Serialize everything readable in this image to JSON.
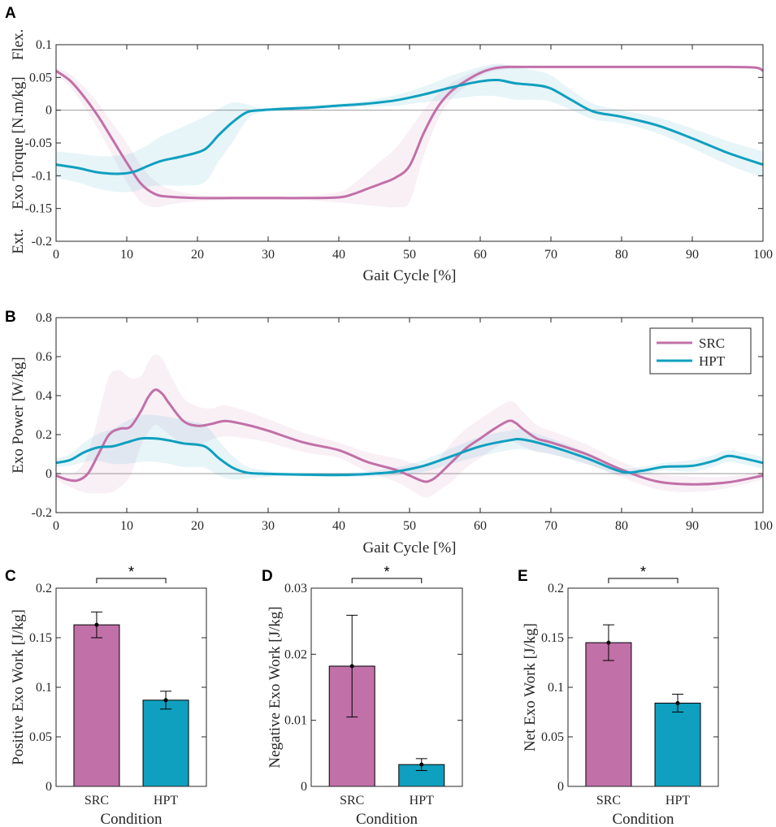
{
  "panels": {
    "A": "A",
    "B": "B",
    "C": "C",
    "D": "D",
    "E": "E"
  },
  "colors": {
    "SRC": "#c170a8",
    "HPT": "#0f9fbf",
    "zero_line": "#9b9b9b"
  },
  "chart_data": [
    {
      "id": "A",
      "type": "line",
      "title": "",
      "xlabel": "Gait Cycle [%]",
      "ylabel": "Exo Torque [N.m/kg]",
      "side_label_top": "Flex.",
      "side_label_bottom": "Ext.",
      "xlim": [
        0,
        100
      ],
      "ylim": [
        -0.2,
        0.1
      ],
      "xticks": [
        0,
        10,
        20,
        30,
        40,
        50,
        60,
        70,
        80,
        90,
        100
      ],
      "xtick_labels": [
        "0",
        "10",
        "20",
        "30",
        "40",
        "50",
        "60",
        "70",
        "80",
        "90",
        "100"
      ],
      "yticks": [
        -0.2,
        -0.15,
        -0.1,
        -0.05,
        0,
        0.05,
        0.1
      ],
      "ytick_labels": [
        "-0.2",
        "-0.15",
        "-0.1",
        "-0.05",
        "0",
        "0.05",
        "0.1"
      ],
      "series": [
        {
          "name": "SRC",
          "x": [
            0,
            2,
            4,
            6,
            8,
            10,
            12,
            14,
            16,
            20,
            25,
            30,
            35,
            40,
            42,
            44,
            46,
            48,
            50,
            52,
            54,
            56,
            58,
            60,
            62,
            64,
            66,
            70,
            80,
            90,
            95,
            99,
            100
          ],
          "mean": [
            0.06,
            0.045,
            0.02,
            -0.01,
            -0.045,
            -0.08,
            -0.112,
            -0.128,
            -0.132,
            -0.134,
            -0.134,
            -0.134,
            -0.134,
            -0.133,
            -0.128,
            -0.12,
            -0.112,
            -0.103,
            -0.085,
            -0.035,
            0.005,
            0.03,
            0.045,
            0.057,
            0.064,
            0.066,
            0.066,
            0.066,
            0.066,
            0.066,
            0.066,
            0.065,
            0.06
          ],
          "band": [
            0.005,
            0.01,
            0.015,
            0.02,
            0.025,
            0.03,
            0.028,
            0.02,
            0.012,
            0.005,
            0.003,
            0.003,
            0.003,
            0.008,
            0.015,
            0.025,
            0.035,
            0.045,
            0.055,
            0.035,
            0.02,
            0.012,
            0.008,
            0.005,
            0.004,
            0.003,
            0.002,
            0.002,
            0.002,
            0.002,
            0.002,
            0.002,
            0.002
          ]
        },
        {
          "name": "HPT",
          "x": [
            0,
            3,
            6,
            9,
            11,
            13,
            15,
            18,
            21,
            23,
            25,
            27,
            29,
            32,
            36,
            40,
            44,
            48,
            52,
            56,
            60,
            62.5,
            65,
            68,
            70,
            73,
            76,
            80,
            85,
            90,
            95,
            100
          ],
          "mean": [
            -0.083,
            -0.088,
            -0.095,
            -0.097,
            -0.094,
            -0.085,
            -0.077,
            -0.07,
            -0.06,
            -0.038,
            -0.018,
            -0.003,
            0.0,
            0.002,
            0.004,
            0.007,
            0.01,
            0.015,
            0.024,
            0.035,
            0.044,
            0.046,
            0.041,
            0.038,
            0.033,
            0.015,
            -0.002,
            -0.01,
            -0.023,
            -0.043,
            -0.065,
            -0.083
          ],
          "band": [
            0.02,
            0.022,
            0.025,
            0.028,
            0.03,
            0.032,
            0.038,
            0.045,
            0.05,
            0.04,
            0.03,
            0.012,
            0.003,
            0.003,
            0.003,
            0.003,
            0.005,
            0.008,
            0.012,
            0.018,
            0.022,
            0.025,
            0.025,
            0.022,
            0.02,
            0.015,
            0.012,
            0.01,
            0.012,
            0.015,
            0.018,
            0.02
          ]
        }
      ]
    },
    {
      "id": "B",
      "type": "line",
      "title": "",
      "xlabel": "Gait Cycle [%]",
      "ylabel": "Exo Power [W/kg]",
      "xlim": [
        0,
        100
      ],
      "ylim": [
        -0.2,
        0.8
      ],
      "xticks": [
        0,
        10,
        20,
        30,
        40,
        50,
        60,
        70,
        80,
        90,
        100
      ],
      "xtick_labels": [
        "0",
        "10",
        "20",
        "30",
        "40",
        "50",
        "60",
        "70",
        "80",
        "90",
        "100"
      ],
      "yticks": [
        -0.2,
        0,
        0.2,
        0.4,
        0.6,
        0.8
      ],
      "ytick_labels": [
        "-0.2",
        "0",
        "0.2",
        "0.4",
        "0.6",
        "0.8"
      ],
      "legend": {
        "position": "top-right",
        "entries": [
          "SRC",
          "HPT"
        ]
      },
      "series": [
        {
          "name": "SRC",
          "x": [
            0,
            1.5,
            3,
            4.5,
            6,
            7.5,
            9,
            10.5,
            12,
            13,
            14,
            15,
            16,
            18,
            20,
            22,
            24,
            27,
            30,
            35,
            40,
            44,
            48,
            50,
            52,
            53,
            54,
            56,
            58,
            60,
            62,
            64,
            65,
            66,
            68,
            70,
            75,
            80,
            85,
            90,
            95,
            100
          ],
          "mean": [
            -0.01,
            -0.03,
            -0.035,
            0.0,
            0.1,
            0.2,
            0.23,
            0.24,
            0.32,
            0.39,
            0.43,
            0.41,
            0.36,
            0.27,
            0.245,
            0.255,
            0.27,
            0.25,
            0.22,
            0.16,
            0.12,
            0.06,
            0.02,
            -0.01,
            -0.04,
            -0.035,
            -0.01,
            0.06,
            0.13,
            0.18,
            0.23,
            0.27,
            0.26,
            0.23,
            0.18,
            0.16,
            0.1,
            0.02,
            -0.04,
            -0.055,
            -0.045,
            -0.01
          ],
          "band": [
            0.02,
            0.03,
            0.05,
            0.1,
            0.2,
            0.3,
            0.3,
            0.25,
            0.18,
            0.18,
            0.18,
            0.18,
            0.16,
            0.12,
            0.1,
            0.08,
            0.08,
            0.07,
            0.06,
            0.05,
            0.04,
            0.05,
            0.06,
            0.07,
            0.08,
            0.08,
            0.08,
            0.1,
            0.1,
            0.1,
            0.1,
            0.1,
            0.1,
            0.09,
            0.07,
            0.06,
            0.05,
            0.04,
            0.04,
            0.04,
            0.03,
            0.02
          ]
        },
        {
          "name": "HPT",
          "x": [
            0,
            2,
            4,
            6,
            8,
            10,
            12,
            14,
            16,
            18,
            21,
            23,
            25,
            27,
            29,
            32,
            40,
            45,
            48,
            52,
            56,
            60,
            64,
            66,
            70,
            75,
            80,
            83,
            86,
            90,
            93,
            95,
            97,
            100
          ],
          "mean": [
            0.055,
            0.07,
            0.11,
            0.135,
            0.14,
            0.16,
            0.18,
            0.18,
            0.17,
            0.155,
            0.14,
            0.08,
            0.03,
            0.005,
            0.0,
            -0.003,
            -0.007,
            0.0,
            0.01,
            0.04,
            0.09,
            0.14,
            0.17,
            0.175,
            0.14,
            0.08,
            0.01,
            0.015,
            0.035,
            0.04,
            0.065,
            0.09,
            0.08,
            0.055
          ],
          "band": [
            0.02,
            0.03,
            0.05,
            0.07,
            0.09,
            0.11,
            0.12,
            0.12,
            0.12,
            0.12,
            0.11,
            0.09,
            0.06,
            0.03,
            0.02,
            0.01,
            0.01,
            0.015,
            0.02,
            0.03,
            0.04,
            0.05,
            0.05,
            0.05,
            0.04,
            0.03,
            0.02,
            0.02,
            0.02,
            0.03,
            0.03,
            0.03,
            0.03,
            0.03
          ]
        }
      ]
    },
    {
      "id": "C",
      "type": "bar",
      "xlabel": "Condition",
      "ylabel": "Positive Exo Work [J/kg]",
      "categories": [
        "SRC",
        "HPT"
      ],
      "values": [
        0.163,
        0.087
      ],
      "errors": [
        0.013,
        0.009
      ],
      "ylim": [
        0,
        0.2
      ],
      "yticks": [
        0,
        0.05,
        0.1,
        0.15,
        0.2
      ],
      "ytick_labels": [
        "0",
        "0.05",
        "0.1",
        "0.15",
        "0.2"
      ],
      "significance": "*"
    },
    {
      "id": "D",
      "type": "bar",
      "xlabel": "Condition",
      "ylabel": "Negative Exo Work [J/kg]",
      "categories": [
        "SRC",
        "HPT"
      ],
      "values": [
        0.0182,
        0.0033
      ],
      "errors": [
        0.0077,
        0.0009
      ],
      "ylim": [
        0,
        0.03
      ],
      "yticks": [
        0,
        0.01,
        0.02,
        0.03
      ],
      "ytick_labels": [
        "0",
        "0.01",
        "0.02",
        "0.03"
      ],
      "significance": "*"
    },
    {
      "id": "E",
      "type": "bar",
      "xlabel": "Condition",
      "ylabel": "Net Exo Work [J/kg]",
      "categories": [
        "SRC",
        "HPT"
      ],
      "values": [
        0.145,
        0.084
      ],
      "errors": [
        0.018,
        0.009
      ],
      "ylim": [
        0,
        0.2
      ],
      "yticks": [
        0,
        0.05,
        0.1,
        0.15,
        0.2
      ],
      "ytick_labels": [
        "0",
        "0.05",
        "0.1",
        "0.15",
        "0.2"
      ],
      "significance": "*"
    }
  ]
}
